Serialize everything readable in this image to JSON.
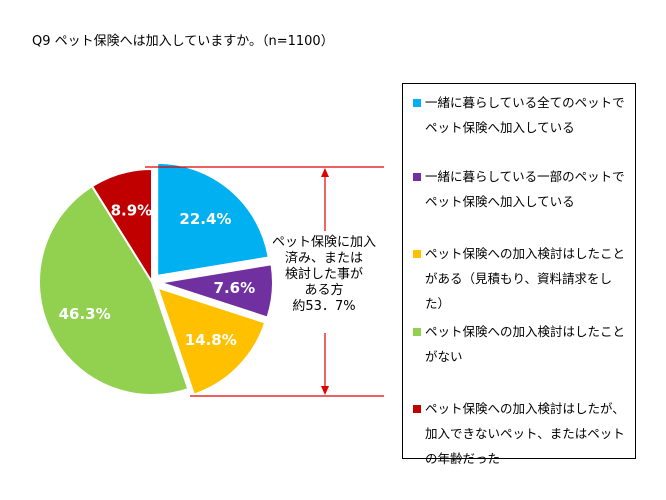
{
  "title": "Q9 ペット保険へは加入していますか。（n=1100）",
  "chart_data": {
    "type": "pie",
    "slices": [
      {
        "label": "一緒に暮らしている全てのペットでペット保険へ加入している",
        "value": 22.4,
        "value_label": "22.4%",
        "color": "#00b0f0",
        "exploded": true
      },
      {
        "label": "一緒に暮らしている一部のペットでペット保険へ加入している",
        "value": 7.6,
        "value_label": "7.6%",
        "color": "#7030a0",
        "exploded": true
      },
      {
        "label": "ペット保険への加入検討はしたことがある（見積もり、資料請求をした）",
        "value": 14.8,
        "value_label": "14.8%",
        "color": "#ffc000",
        "exploded": true
      },
      {
        "label": "ペット保険への加入検討はしたことがない",
        "value": 46.3,
        "value_label": "46.3%",
        "color": "#92d050",
        "exploded": false
      },
      {
        "label": "ペット保険への加入検討はしたが、加入できないペット、またはペットの年齢だった",
        "value": 8.9,
        "value_label": "8.9%",
        "color": "#c00000",
        "exploded": false
      }
    ],
    "legend_position": "right"
  },
  "callout": {
    "lines": [
      "ペット保険に加入",
      "済み、または",
      "検討した事が",
      "ある方",
      "約53．7%"
    ]
  },
  "legend": {
    "items": [
      {
        "lines": [
          "一緒に暮らしている全てのペットで",
          "ペット保険へ加入している"
        ],
        "color": "#00b0f0"
      },
      {
        "lines": [
          "一緒に暮らしている一部のペットで",
          "ペット保険へ加入している"
        ],
        "color": "#7030a0"
      },
      {
        "lines": [
          "ペット保険への加入検討はしたこと",
          "がある（見積もり、資料請求をし",
          "た）"
        ],
        "color": "#ffc000"
      },
      {
        "lines": [
          "ペット保険への加入検討はしたこと",
          "がない"
        ],
        "color": "#92d050"
      },
      {
        "lines": [
          "ペット保険への加入検討はしたが、",
          "加入できないペット、またはペット",
          "の年齢だった"
        ],
        "color": "#c00000"
      }
    ]
  }
}
